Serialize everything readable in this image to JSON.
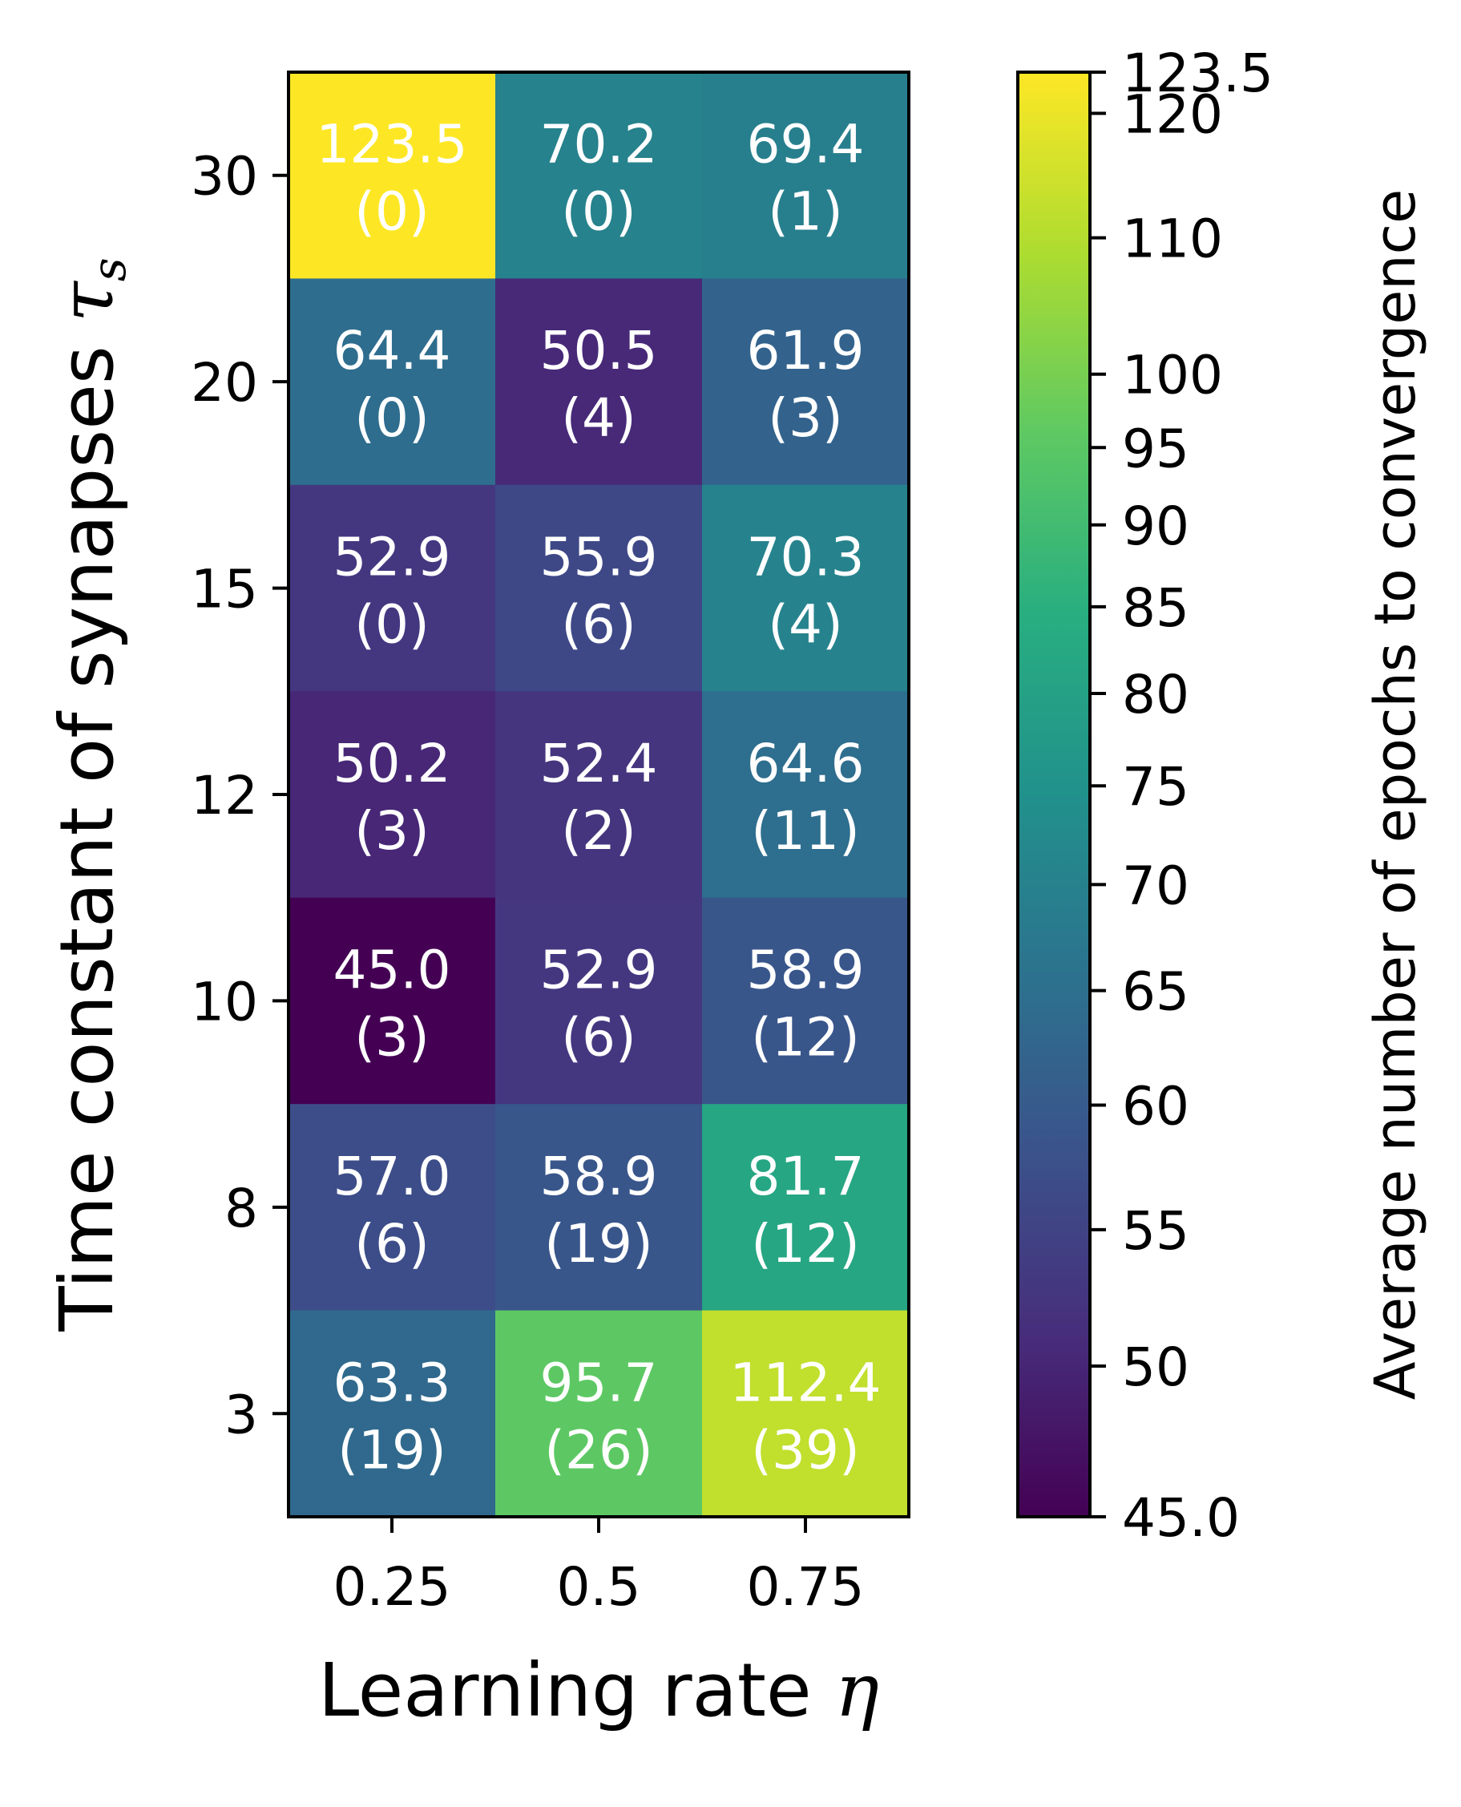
{
  "chart_data": {
    "type": "heatmap",
    "xlabel_text": "Learning rate ",
    "xlabel_symbol": "η",
    "ylabel_text": "Time constant of synapses ",
    "ylabel_symbol": "τ",
    "ylabel_subscript": "s",
    "x_categories": [
      "0.25",
      "0.5",
      "0.75"
    ],
    "y_categories": [
      "30",
      "20",
      "15",
      "12",
      "10",
      "8",
      "3"
    ],
    "values": [
      [
        123.5,
        70.2,
        69.4
      ],
      [
        64.4,
        50.5,
        61.9
      ],
      [
        52.9,
        55.9,
        70.3
      ],
      [
        50.2,
        52.4,
        64.6
      ],
      [
        45.0,
        52.9,
        58.9
      ],
      [
        57.0,
        58.9,
        81.7
      ],
      [
        63.3,
        95.7,
        112.4
      ]
    ],
    "annotations": [
      [
        [
          "123.5",
          "(0)"
        ],
        [
          "70.2",
          "(0)"
        ],
        [
          "69.4",
          "(1)"
        ]
      ],
      [
        [
          "64.4",
          "(0)"
        ],
        [
          "50.5",
          "(4)"
        ],
        [
          "61.9",
          "(3)"
        ]
      ],
      [
        [
          "52.9",
          "(0)"
        ],
        [
          "55.9",
          "(6)"
        ],
        [
          "70.3",
          "(4)"
        ]
      ],
      [
        [
          "50.2",
          "(3)"
        ],
        [
          "52.4",
          "(2)"
        ],
        [
          "64.6",
          "(11)"
        ]
      ],
      [
        [
          "45.0",
          "(3)"
        ],
        [
          "52.9",
          "(6)"
        ],
        [
          "58.9",
          "(12)"
        ]
      ],
      [
        [
          "57.0",
          "(6)"
        ],
        [
          "58.9",
          "(19)"
        ],
        [
          "81.7",
          "(12)"
        ]
      ],
      [
        [
          "63.3",
          "(19)"
        ],
        [
          "95.7",
          "(26)"
        ],
        [
          "112.4",
          "(39)"
        ]
      ]
    ],
    "colorbar": {
      "label": "Average number of epochs to convergence",
      "vmin": 45.0,
      "vmax": 123.5,
      "scale": "log",
      "colormap": "viridis",
      "ticks": [
        45.0,
        50,
        55,
        60,
        65,
        70,
        75,
        80,
        85,
        90,
        95,
        100,
        110,
        120,
        123.5
      ],
      "tick_labels": [
        "45.0",
        "50",
        "55",
        "60",
        "65",
        "70",
        "75",
        "80",
        "85",
        "90",
        "95",
        "100",
        "110",
        "120",
        "123.5"
      ]
    },
    "grid": false
  }
}
